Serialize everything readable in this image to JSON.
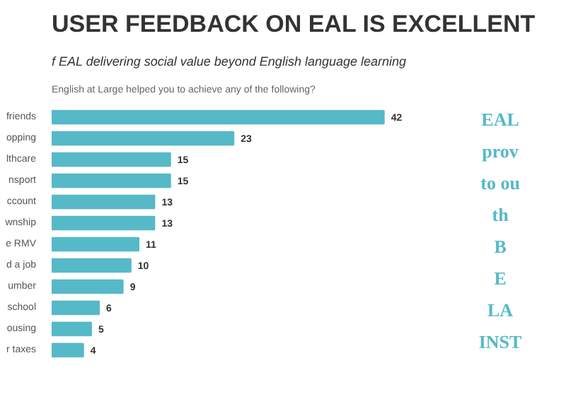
{
  "chart_data": {
    "type": "bar",
    "orientation": "horizontal",
    "data_labels": true,
    "title": "USER FEEDBACK ON EAL IS EXCELLENT",
    "subtitle": "f EAL delivering social value beyond English language learning",
    "categories": [
      "friends",
      "opping",
      "lthcare",
      "nsport",
      "ccount",
      "wnship",
      "e RMV",
      "d a job",
      "umber",
      "school",
      "ousing",
      "r taxes"
    ],
    "values": [
      42,
      23,
      15,
      15,
      13,
      13,
      11,
      10,
      9,
      6,
      5,
      4
    ],
    "color": "#56b9c7",
    "annotations": [
      "English at Large helped you to achieve any of the following?",
      "EAL",
      "prov",
      "to ou",
      "th",
      "B",
      "E",
      "LA",
      "INST"
    ]
  }
}
